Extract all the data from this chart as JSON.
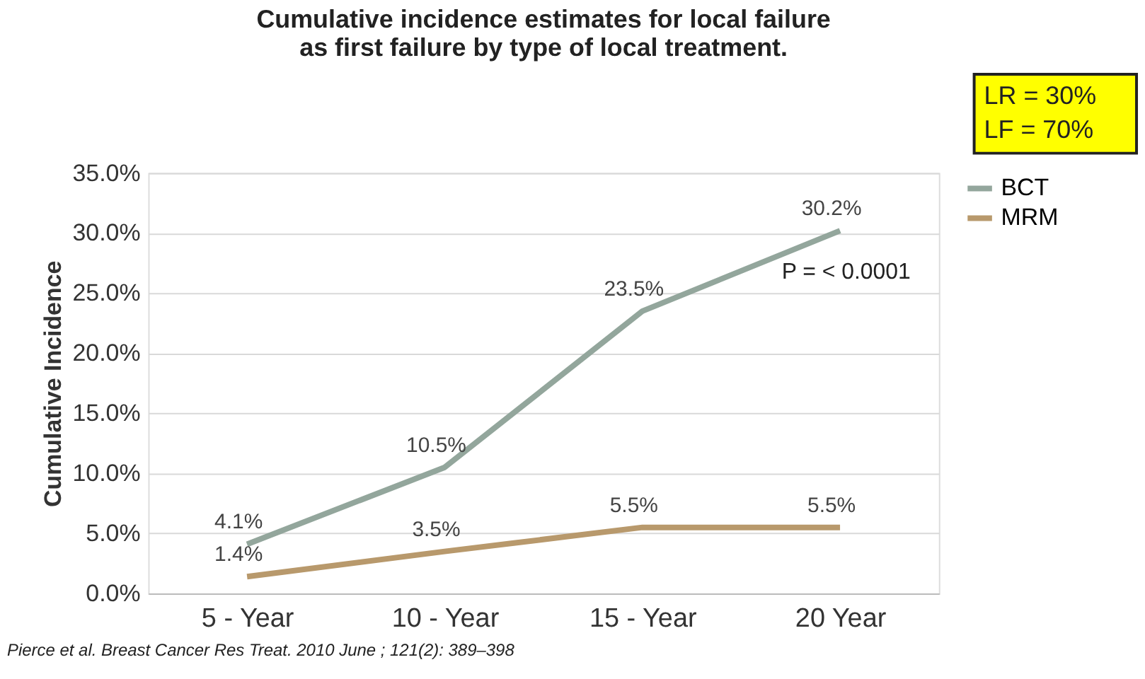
{
  "chart_data": {
    "type": "line",
    "title": "Cumulative incidence estimates for local failure as first failure by type of local treatment.",
    "ylabel": "Cumulative Incidence",
    "categories": [
      "5 - Year",
      "10 - Year",
      "15 - Year",
      "20 Year"
    ],
    "series": [
      {
        "name": "BCT",
        "color": "#93a69c",
        "values": [
          4.1,
          10.5,
          23.5,
          30.2
        ],
        "value_labels": [
          "4.1%",
          "10.5%",
          "23.5%",
          "30.2%"
        ]
      },
      {
        "name": "MRM",
        "color": "#b8996c",
        "values": [
          1.4,
          3.5,
          5.5,
          5.5
        ],
        "value_labels": [
          "1.4%",
          "3.5%",
          "5.5%",
          "5.5%"
        ]
      }
    ],
    "ylim": [
      0,
      35
    ],
    "yticks": [
      {
        "value": 0,
        "label": "0.0%"
      },
      {
        "value": 5,
        "label": "5.0%"
      },
      {
        "value": 10,
        "label": "10.0%"
      },
      {
        "value": 15,
        "label": "15.0%"
      },
      {
        "value": 20,
        "label": "20.0%"
      },
      {
        "value": 25,
        "label": "25.0%"
      },
      {
        "value": 30,
        "label": "30.0%"
      },
      {
        "value": 35,
        "label": "35.0%"
      }
    ],
    "grid": "y",
    "legend": "right",
    "marker": "none",
    "line_style": "solid",
    "annotations": [
      "P = < 0.0001",
      "LR = 30%",
      "LF  = 70%",
      "Pierce et al. Breast Cancer Res Treat. 2010 June ; 121(2): 389–398"
    ]
  }
}
